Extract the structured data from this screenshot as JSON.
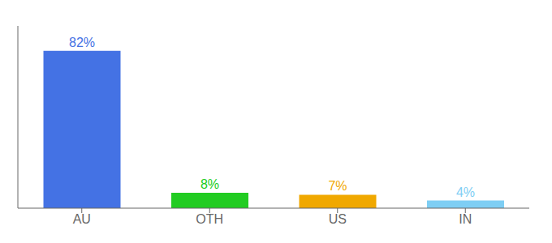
{
  "chart_data": {
    "type": "bar",
    "categories": [
      "AU",
      "OTH",
      "US",
      "IN"
    ],
    "values": [
      82,
      8,
      7,
      4
    ],
    "value_labels": [
      "82%",
      "8%",
      "7%",
      "4%"
    ],
    "colors": [
      "#4472e4",
      "#22cc22",
      "#f0a800",
      "#7ecef4"
    ],
    "ylim": [
      0,
      95
    ],
    "data_labels": true,
    "tick_labels": "x",
    "grid": false
  }
}
